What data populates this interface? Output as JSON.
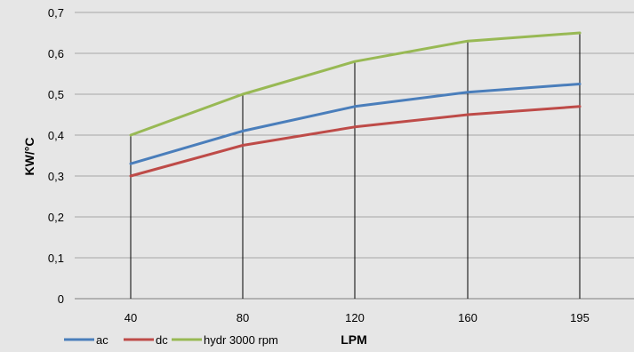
{
  "chart_data": {
    "type": "line",
    "title": "",
    "xlabel": "LPM",
    "ylabel": "KW/°C",
    "categories": [
      "40",
      "80",
      "120",
      "160",
      "195"
    ],
    "ylim": [
      0,
      0.7
    ],
    "yticks": [
      "0",
      "0,1",
      "0,2",
      "0,3",
      "0,4",
      "0,5",
      "0,6",
      "0,7"
    ],
    "grid": "horizontal",
    "drop_lines": true,
    "legend_position": "bottom-left",
    "series": [
      {
        "name": "ac",
        "color": "#4a7ebb",
        "values": [
          0.33,
          0.41,
          0.47,
          0.505,
          0.525
        ]
      },
      {
        "name": "dc",
        "color": "#be4b48",
        "values": [
          0.3,
          0.375,
          0.42,
          0.45,
          0.47
        ]
      },
      {
        "name": "hydr 3000 rpm",
        "color": "#98b954",
        "values": [
          0.4,
          0.5,
          0.58,
          0.63,
          0.65
        ]
      }
    ]
  }
}
